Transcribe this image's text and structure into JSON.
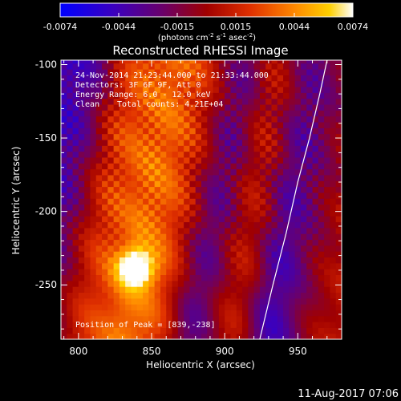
{
  "colorbar": {
    "ticks": [
      "-0.0074",
      "-0.0044",
      "-0.0015",
      "0.0015",
      "0.0044",
      "0.0074"
    ],
    "units_text": "(photons cm",
    "units_sup1": "-2",
    "units_mid": " s",
    "units_sup2": "-1",
    "units_end": " asec",
    "units_sup3": "-2",
    "units_close": ")"
  },
  "annotations": {
    "time": "24-Nov-2014 21:23:44.000 to 21:33:44.000",
    "detectors": "Detectors: 3F 6F 9F, Att 0",
    "energy": "Energy Range: 6.0 - 12.0 keV",
    "clean_label": "Clean",
    "total_counts": "Total counts: 4.21E+04",
    "peak": "Position of Peak = [839,-238]"
  },
  "footer": {
    "timestamp": "11-Aug-2017 07:06"
  },
  "chart_data": {
    "type": "heatmap",
    "title": "Reconstructed RHESSI Image",
    "xlabel": "Heliocentric X (arcsec)",
    "ylabel": "Heliocentric Y (arcsec)",
    "xlim": [
      788,
      980
    ],
    "ylim": [
      -287,
      -97
    ],
    "xticks": [
      800,
      850,
      900,
      950
    ],
    "yticks": [
      -100,
      -150,
      -200,
      -250
    ],
    "colormap": "red-temperature",
    "color_range": [
      -0.0074,
      0.0074
    ],
    "peak": {
      "x": 839,
      "y": -238
    },
    "ridges": [
      {
        "x_at_bottom": 795,
        "x_at_top": 838,
        "level": 0.74
      },
      {
        "x_at_bottom": 850,
        "x_at_top": 890,
        "level": 0.8
      },
      {
        "x_at_bottom": 902,
        "x_at_top": 940,
        "level": 0.75
      },
      {
        "x_at_bottom": 955,
        "x_at_top": 978,
        "level": 0.58
      }
    ],
    "troughs": [
      {
        "x_at_bottom": 775,
        "x_at_top": 808,
        "level": 0.2
      },
      {
        "x_at_bottom": 878,
        "x_at_top": 910,
        "level": 0.16
      },
      {
        "x_at_bottom": 932,
        "x_at_top": 962,
        "level": 0.07
      }
    ],
    "limb_curve": [
      {
        "x": 924,
        "y": -287
      },
      {
        "x": 933,
        "y": -250
      },
      {
        "x": 942,
        "y": -215
      },
      {
        "x": 950,
        "y": -180
      },
      {
        "x": 958,
        "y": -150
      },
      {
        "x": 965,
        "y": -120
      },
      {
        "x": 970,
        "y": -97
      }
    ]
  }
}
